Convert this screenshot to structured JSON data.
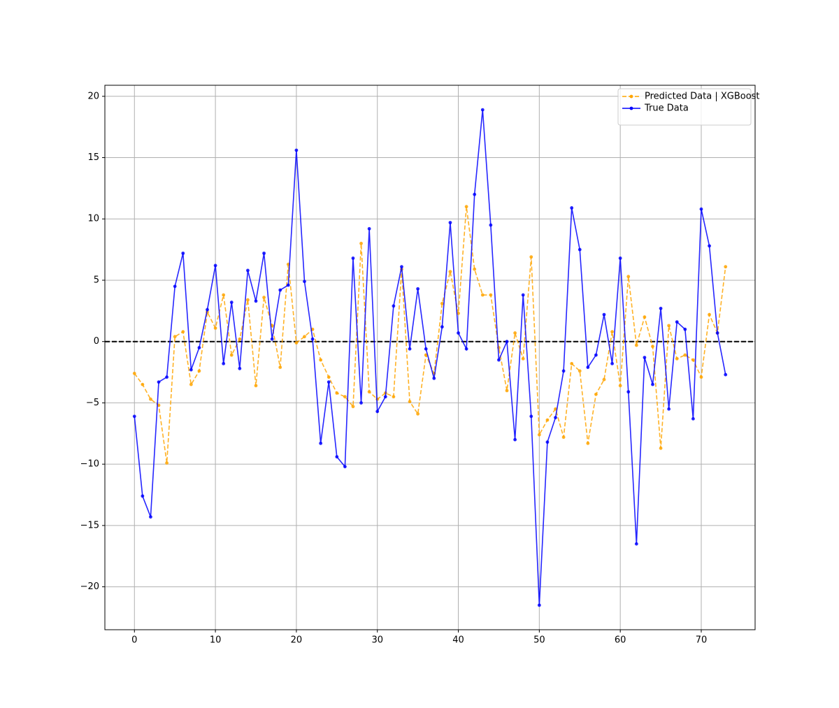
{
  "chart_data": {
    "type": "line",
    "x": [
      0,
      1,
      2,
      3,
      4,
      5,
      6,
      7,
      8,
      9,
      10,
      11,
      12,
      13,
      14,
      15,
      16,
      17,
      18,
      19,
      20,
      21,
      22,
      23,
      24,
      25,
      26,
      27,
      28,
      29,
      30,
      31,
      32,
      33,
      34,
      35,
      36,
      37,
      38,
      39,
      40,
      41,
      42,
      43,
      44,
      45,
      46,
      47,
      48,
      49,
      50,
      51,
      52,
      53,
      54,
      55,
      56,
      57,
      58,
      59,
      60,
      61,
      62,
      63,
      64,
      65,
      66,
      67,
      68,
      69,
      70,
      71,
      72,
      73
    ],
    "series": [
      {
        "name": "Predicted Data | XGBoost",
        "color": "#ffa500",
        "linestyle": "dashed",
        "values": [
          -2.6,
          -3.5,
          -4.7,
          -5.2,
          -9.9,
          0.4,
          0.8,
          -3.5,
          -2.4,
          2.4,
          1.1,
          3.8,
          -1.1,
          0.2,
          3.4,
          -3.6,
          3.6,
          1.3,
          -2.1,
          6.3,
          -0.1,
          0.4,
          1.0,
          -1.5,
          -2.9,
          -4.2,
          -4.5,
          -5.3,
          8.0,
          -4.1,
          -4.7,
          -4.2,
          -4.5,
          5.9,
          -4.9,
          -5.9,
          -1.1,
          -2.6,
          3.1,
          5.7,
          2.3,
          11.0,
          5.9,
          3.8,
          3.8,
          -0.5,
          -4.0,
          0.7,
          -1.4,
          6.9,
          -7.6,
          -6.4,
          -5.5,
          -7.8,
          -1.8,
          -2.4,
          -8.3,
          -4.3,
          -3.1,
          0.8,
          -3.6,
          5.3,
          -0.3,
          2.0,
          -0.4,
          -8.7,
          1.3,
          -1.4,
          -1.1,
          -1.5,
          -2.9,
          2.2,
          0.7,
          6.1
        ]
      },
      {
        "name": "True Data",
        "color": "#0000ff",
        "linestyle": "solid",
        "values": [
          -6.1,
          -12.6,
          -14.3,
          -3.3,
          -2.9,
          4.5,
          7.2,
          -2.3,
          -0.5,
          2.6,
          6.2,
          -1.8,
          3.2,
          -2.2,
          5.8,
          3.3,
          7.2,
          0.2,
          4.2,
          4.6,
          15.6,
          4.9,
          0.2,
          -8.3,
          -3.3,
          -9.4,
          -10.2,
          6.8,
          -5.0,
          9.2,
          -5.7,
          -4.5,
          2.9,
          6.1,
          -0.6,
          4.3,
          -0.6,
          -3.0,
          1.2,
          9.7,
          0.7,
          -0.6,
          12.0,
          18.9,
          9.5,
          -1.5,
          0.0,
          -8.0,
          3.8,
          -6.1,
          -21.5,
          -8.2,
          -6.2,
          -2.4,
          10.9,
          7.5,
          -2.1,
          -1.1,
          2.2,
          -1.8,
          6.8,
          -4.1,
          -16.5,
          -1.3,
          -3.5,
          2.7,
          -5.5,
          1.6,
          1.0,
          -6.3,
          10.8,
          7.8,
          0.7,
          -2.7
        ]
      }
    ],
    "hline": 0,
    "xlim": [
      -3.65,
      76.65
    ],
    "ylim": [
      -23.5,
      20.9
    ],
    "xticks": [
      0,
      10,
      20,
      30,
      40,
      50,
      60,
      70
    ],
    "yticks": [
      {
        "value": -20,
        "label": "−20"
      },
      {
        "value": -15,
        "label": "−15"
      },
      {
        "value": -10,
        "label": "−10"
      },
      {
        "value": -5,
        "label": "−5"
      },
      0,
      5,
      10,
      15,
      20
    ],
    "grid": true,
    "legend": "upper right"
  }
}
